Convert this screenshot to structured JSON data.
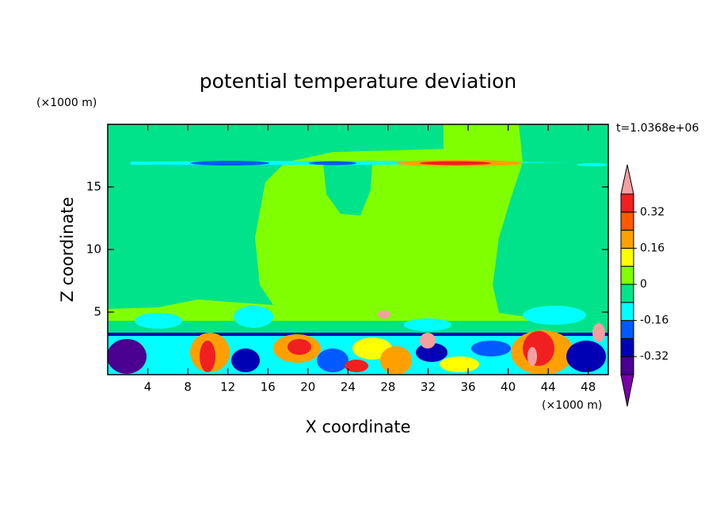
{
  "chart_data": {
    "type": "contour",
    "title": "potential temperature deviation",
    "x_label": "X coordinate",
    "y_label": "Z coordinate",
    "x_unit": "(×1000 m)",
    "y_unit": "(×1000 m)",
    "time_label": "t=1.0368e+06",
    "xlim": [
      0,
      50
    ],
    "xticks": [
      4,
      8,
      12,
      16,
      20,
      24,
      28,
      32,
      36,
      40,
      44,
      48
    ],
    "ylim": [
      0,
      20
    ],
    "yticks": [
      5,
      10,
      15
    ],
    "colorbar": {
      "levels": [
        -0.4,
        -0.32,
        -0.24,
        -0.16,
        -0.08,
        0,
        0.08,
        0.16,
        0.24,
        0.32,
        0.4
      ],
      "colors": [
        "#7a00a8",
        "#4a0090",
        "#0000b4",
        "#005aff",
        "#00ffff",
        "#00e38a",
        "#80ff00",
        "#ffff00",
        "#ffa000",
        "#ff5a00",
        "#f02020",
        "#f4a0a0"
      ],
      "ticks": [
        -0.32,
        -0.16,
        0,
        0.16,
        0.32
      ]
    }
  }
}
